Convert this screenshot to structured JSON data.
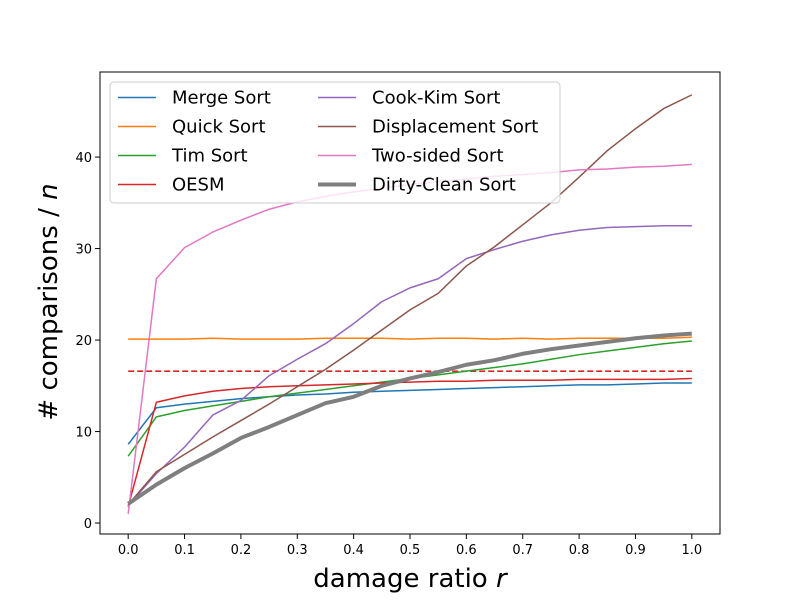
{
  "chart_data": {
    "type": "line",
    "title": "",
    "xlabel": {
      "text": "damage ratio ",
      "var": "r"
    },
    "ylabel": {
      "text": "# comparisons / ",
      "var": "n"
    },
    "xlim": [
      -0.05,
      1.05
    ],
    "ylim": [
      -1.2,
      49.3
    ],
    "xticks": [
      0.0,
      0.1,
      0.2,
      0.3,
      0.4,
      0.5,
      0.6,
      0.7,
      0.8,
      0.9,
      1.0
    ],
    "xtick_labels": [
      "0.0",
      "0.1",
      "0.2",
      "0.3",
      "0.4",
      "0.5",
      "0.6",
      "0.7",
      "0.8",
      "0.9",
      "1.0"
    ],
    "yticks": [
      0,
      10,
      20,
      30,
      40
    ],
    "ytick_labels": [
      "0",
      "10",
      "20",
      "30",
      "40"
    ],
    "grid": false,
    "legend_position": "top-left",
    "legend_columns": 2,
    "x": [
      0.0,
      0.05,
      0.1,
      0.15,
      0.2,
      0.25,
      0.3,
      0.35,
      0.4,
      0.45,
      0.5,
      0.55,
      0.6,
      0.65,
      0.7,
      0.75,
      0.8,
      0.85,
      0.9,
      0.95,
      1.0
    ],
    "series": [
      {
        "name": "Merge Sort",
        "color": "#1f77b4",
        "width": 1.5,
        "values": [
          8.6,
          12.6,
          13.0,
          13.3,
          13.6,
          13.8,
          14.0,
          14.1,
          14.3,
          14.4,
          14.5,
          14.6,
          14.7,
          14.8,
          14.9,
          15.0,
          15.1,
          15.1,
          15.2,
          15.3,
          15.3
        ]
      },
      {
        "name": "Quick Sort",
        "color": "#ff7f0e",
        "width": 1.5,
        "values": [
          20.1,
          20.1,
          20.1,
          20.2,
          20.1,
          20.1,
          20.1,
          20.2,
          20.2,
          20.2,
          20.1,
          20.2,
          20.2,
          20.1,
          20.2,
          20.1,
          20.2,
          20.2,
          20.2,
          20.2,
          20.3
        ]
      },
      {
        "name": "Tim Sort",
        "color": "#2ca02c",
        "width": 1.5,
        "values": [
          7.3,
          11.6,
          12.3,
          12.8,
          13.3,
          13.8,
          14.2,
          14.6,
          15.0,
          15.4,
          15.8,
          16.2,
          16.6,
          17.0,
          17.4,
          17.9,
          18.4,
          18.8,
          19.2,
          19.6,
          19.9
        ]
      },
      {
        "name": "OESM",
        "color": "#d62728",
        "width": 1.5,
        "values": [
          1.8,
          13.2,
          13.9,
          14.4,
          14.7,
          14.9,
          15.0,
          15.1,
          15.2,
          15.3,
          15.4,
          15.5,
          15.5,
          15.6,
          15.6,
          15.6,
          15.7,
          15.7,
          15.7,
          15.7,
          15.8
        ]
      },
      {
        "name": "Cook-Kim Sort",
        "color": "#9467bd",
        "width": 1.5,
        "values": [
          1.9,
          5.4,
          8.3,
          11.8,
          13.4,
          16.1,
          17.9,
          19.6,
          21.8,
          24.2,
          25.7,
          26.7,
          28.9,
          29.9,
          30.8,
          31.5,
          32.0,
          32.3,
          32.4,
          32.5,
          32.5
        ]
      },
      {
        "name": "Displacement Sort",
        "color": "#8c564b",
        "width": 1.5,
        "values": [
          2.0,
          5.6,
          7.5,
          9.4,
          11.2,
          13.0,
          14.9,
          16.8,
          18.9,
          21.1,
          23.3,
          25.1,
          28.1,
          30.2,
          32.6,
          35.0,
          37.8,
          40.7,
          43.1,
          45.3,
          46.8
        ]
      },
      {
        "name": "Two-sided Sort",
        "color": "#e377c2",
        "width": 1.5,
        "values": [
          1.0,
          26.7,
          30.1,
          31.8,
          33.1,
          34.3,
          35.1,
          35.7,
          36.2,
          36.6,
          37.0,
          37.3,
          37.6,
          37.9,
          38.1,
          38.3,
          38.6,
          38.7,
          38.9,
          39.0,
          39.2
        ]
      },
      {
        "name": "Dirty-Clean Sort",
        "color": "#7f7f7f",
        "width": 4,
        "values": [
          2.1,
          4.2,
          6.0,
          7.6,
          9.3,
          10.5,
          11.8,
          13.1,
          13.8,
          15.0,
          15.8,
          16.5,
          17.3,
          17.8,
          18.5,
          19.0,
          19.4,
          19.8,
          20.2,
          20.5,
          20.7
        ]
      }
    ],
    "reference_line": {
      "y": 16.6,
      "x_range": [
        0.0,
        1.0
      ],
      "color": "#d62728",
      "style": "dashed"
    }
  }
}
